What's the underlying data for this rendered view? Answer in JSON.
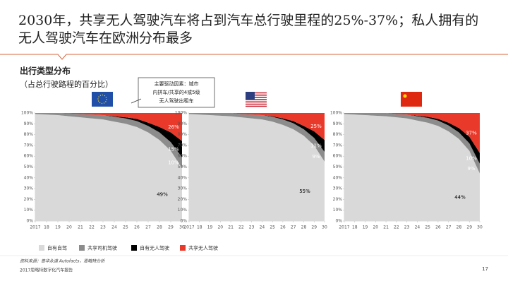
{
  "title_lines": [
    "2030年，共享无人驾驶汽车将占到汽车总行驶里程的25%-37%；私人拥有的",
    "无人驾驶汽车在欧洲分布最多"
  ],
  "subtitle": "出行类型分布",
  "subtitle_note": "（占总行驶路程的百分比）",
  "callout": [
    "主要驱动因素：城市",
    "内拼车/共享的4或5级",
    "无人驾驶出租车"
  ],
  "legend": [
    {
      "name": "自有自驾",
      "color": "#d9d9d9"
    },
    {
      "name": "共享司机驾驶",
      "color": "#8c8c8c"
    },
    {
      "name": "自有无人驾驶",
      "color": "#000000"
    },
    {
      "name": "共享无人驾驶",
      "color": "#e8392b"
    }
  ],
  "source": "资料来源：普华永道 Autofacts，思略特分析",
  "report": "2017思略特数字化汽车报告",
  "page_number": "17",
  "chart_data": [
    {
      "type": "area",
      "stacked": true,
      "categories": [
        "2017",
        "18",
        "19",
        "20",
        "21",
        "22",
        "23",
        "24",
        "25",
        "26",
        "27",
        "28",
        "29",
        "30"
      ],
      "ylim": [
        0,
        100
      ],
      "yticks": [
        {
          "value": 0,
          "label": "0%"
        },
        {
          "value": 10,
          "label": "10%"
        },
        {
          "value": 20,
          "label": "20%"
        },
        {
          "value": 30,
          "label": "30%"
        },
        {
          "value": 40,
          "label": "40%"
        },
        {
          "value": 50,
          "label": "50%"
        },
        {
          "value": 60,
          "label": "60%"
        },
        {
          "value": 70,
          "label": "70%"
        },
        {
          "value": 80,
          "label": "80%"
        },
        {
          "value": 90,
          "label": "90%"
        },
        {
          "value": 100,
          "label": "100%"
        }
      ],
      "series": [
        {
          "values": [
            99,
            98.5,
            98,
            97,
            96,
            95,
            94,
            92,
            90,
            87,
            82,
            75,
            65,
            49
          ],
          "value_labels": [
            null,
            null,
            null,
            null,
            null,
            null,
            null,
            null,
            null,
            null,
            null,
            null,
            null,
            "49%"
          ]
        },
        {
          "values": [
            1,
            1.5,
            2,
            2.5,
            3,
            3.5,
            4,
            4.5,
            5,
            5.5,
            6,
            7,
            8,
            10
          ],
          "value_labels": [
            null,
            null,
            null,
            null,
            null,
            null,
            null,
            null,
            null,
            null,
            null,
            null,
            null,
            "10%"
          ]
        },
        {
          "values": [
            0,
            0,
            0,
            0,
            0,
            0,
            0,
            0.5,
            1,
            2,
            3,
            5,
            9,
            15
          ],
          "value_labels": [
            null,
            null,
            null,
            null,
            null,
            null,
            null,
            null,
            null,
            null,
            null,
            null,
            null,
            "15%"
          ]
        },
        {
          "values": [
            0,
            0,
            0,
            0.5,
            1,
            1.5,
            2,
            3,
            4,
            5.5,
            9,
            13,
            18,
            26
          ],
          "value_labels": [
            null,
            null,
            null,
            null,
            null,
            null,
            null,
            null,
            null,
            null,
            null,
            null,
            null,
            "26%"
          ]
        }
      ]
    },
    {
      "type": "area",
      "stacked": true,
      "categories": [
        "2017",
        "18",
        "19",
        "20",
        "21",
        "22",
        "23",
        "24",
        "25",
        "26",
        "27",
        "28",
        "29",
        "30"
      ],
      "ylim": [
        0,
        100
      ],
      "yticks": [
        {
          "value": 0,
          "label": "0%"
        },
        {
          "value": 10,
          "label": "10%"
        },
        {
          "value": 20,
          "label": "20%"
        },
        {
          "value": 30,
          "label": "30%"
        },
        {
          "value": 40,
          "label": "40%"
        },
        {
          "value": 50,
          "label": "50%"
        },
        {
          "value": 60,
          "label": "60%"
        },
        {
          "value": 70,
          "label": "70%"
        },
        {
          "value": 80,
          "label": "80%"
        },
        {
          "value": 90,
          "label": "90%"
        },
        {
          "value": 100,
          "label": "100%"
        }
      ],
      "series": [
        {
          "values": [
            99,
            98.5,
            98,
            97.5,
            97,
            96,
            95,
            94,
            92,
            89,
            85,
            79,
            70,
            55
          ],
          "value_labels": [
            null,
            null,
            null,
            null,
            null,
            null,
            null,
            null,
            null,
            null,
            null,
            null,
            null,
            "55%"
          ]
        },
        {
          "values": [
            1,
            1.5,
            2,
            2.5,
            3,
            3,
            3.5,
            4,
            4.5,
            5,
            5.5,
            6,
            7,
            9
          ],
          "value_labels": [
            null,
            null,
            null,
            null,
            null,
            null,
            null,
            null,
            null,
            null,
            null,
            null,
            null,
            "9%"
          ]
        },
        {
          "values": [
            0,
            0,
            0,
            0,
            0,
            0,
            0,
            0,
            0.5,
            1,
            2,
            3,
            6,
            11
          ],
          "value_labels": [
            null,
            null,
            null,
            null,
            null,
            null,
            null,
            null,
            null,
            null,
            null,
            null,
            null,
            "11%"
          ]
        },
        {
          "values": [
            0,
            0,
            0,
            0,
            0,
            1,
            1.5,
            2,
            3,
            5,
            7.5,
            12,
            17,
            25
          ],
          "value_labels": [
            null,
            null,
            null,
            null,
            null,
            null,
            null,
            null,
            null,
            null,
            null,
            null,
            null,
            "25%"
          ]
        }
      ]
    },
    {
      "type": "area",
      "stacked": true,
      "categories": [
        "2017",
        "18",
        "19",
        "20",
        "21",
        "22",
        "23",
        "24",
        "25",
        "26",
        "27",
        "28",
        "29",
        "30"
      ],
      "ylim": [
        0,
        100
      ],
      "yticks": [
        {
          "value": 0,
          "label": "0%"
        },
        {
          "value": 10,
          "label": "10%"
        },
        {
          "value": 20,
          "label": "20%"
        },
        {
          "value": 30,
          "label": "30%"
        },
        {
          "value": 40,
          "label": "40%"
        },
        {
          "value": 50,
          "label": "50%"
        },
        {
          "value": 60,
          "label": "60%"
        },
        {
          "value": 70,
          "label": "70%"
        },
        {
          "value": 80,
          "label": "80%"
        },
        {
          "value": 90,
          "label": "90%"
        },
        {
          "value": 100,
          "label": "100%"
        }
      ],
      "series": [
        {
          "values": [
            99,
            98.5,
            98,
            97.5,
            97,
            96,
            95,
            93,
            91,
            88,
            83,
            76,
            65,
            44
          ],
          "value_labels": [
            null,
            null,
            null,
            null,
            null,
            null,
            null,
            null,
            null,
            null,
            null,
            null,
            null,
            "44%"
          ]
        },
        {
          "values": [
            1,
            1.5,
            2,
            2.5,
            3,
            3,
            3.5,
            4,
            4.5,
            5,
            5.5,
            6,
            7,
            9
          ],
          "value_labels": [
            null,
            null,
            null,
            null,
            null,
            null,
            null,
            null,
            null,
            null,
            null,
            null,
            null,
            "9%"
          ]
        },
        {
          "values": [
            0,
            0,
            0,
            0,
            0,
            0,
            0,
            0.5,
            1,
            1.5,
            2.5,
            4,
            6,
            10
          ],
          "value_labels": [
            null,
            null,
            null,
            null,
            null,
            null,
            null,
            null,
            null,
            null,
            null,
            null,
            null,
            "10%"
          ]
        },
        {
          "values": [
            0,
            0,
            0,
            0,
            0,
            1,
            1.5,
            2.5,
            3.5,
            5.5,
            9,
            14,
            22,
            37
          ],
          "value_labels": [
            null,
            null,
            null,
            null,
            null,
            null,
            null,
            null,
            null,
            null,
            null,
            null,
            null,
            "37%"
          ]
        }
      ]
    }
  ]
}
